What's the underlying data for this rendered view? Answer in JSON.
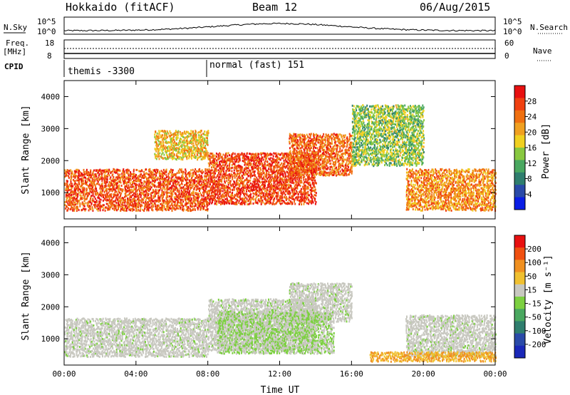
{
  "header": {
    "station": "Hokkaido (fitACF)",
    "beam": "Beam 12",
    "date": "06/Aug/2015"
  },
  "meta_panel": {
    "nsky_label": "N.Sky",
    "nsky_ticks": [
      "10^5",
      "10^0"
    ],
    "nsearch_label": "N.Search",
    "nsearch_ticks": [
      "10^5",
      "10^0"
    ],
    "freq_label": "Freq.",
    "freq_unit": "[MHz]",
    "freq_ticks": [
      "18",
      "8"
    ],
    "nave_label": "Nave",
    "nave_ticks": [
      "60",
      "0"
    ],
    "cpid_label": "CPID",
    "cpid_segments": [
      {
        "name": "themis",
        "value": "-3300",
        "start_hour": 0.0,
        "end_hour": 8.0
      },
      {
        "name": "normal (fast)",
        "value": "151",
        "start_hour": 8.0,
        "end_hour": 24.0
      }
    ]
  },
  "chart_data": [
    {
      "type": "heatmap",
      "name": "power-panel",
      "ylabel": "Slant Range [km]",
      "xlabel": "",
      "xlim": [
        0,
        24
      ],
      "ylim": [
        180,
        4500
      ],
      "yticks": [
        1000,
        2000,
        3000,
        4000
      ],
      "xticks": [
        0,
        4,
        8,
        12,
        16,
        20,
        24
      ],
      "colorbar": {
        "label": "Power [dB]",
        "min": 0,
        "max": 32,
        "ticks": [
          "28",
          "24",
          "20",
          "16",
          "12",
          "8",
          "4"
        ],
        "colors": [
          "#0a1ee6",
          "#2a4aa8",
          "#2f7e6e",
          "#4aa860",
          "#88c840",
          "#f0d020",
          "#f0a020",
          "#f07010",
          "#f04010",
          "#e81010"
        ]
      },
      "echo_regions": [
        {
          "t0": 0.0,
          "t1": 8.0,
          "r0": 400,
          "r1": 1700,
          "intensity": 0.85,
          "color_class": "power-strong"
        },
        {
          "t0": 8.0,
          "t1": 14.0,
          "r0": 600,
          "r1": 2200,
          "intensity": 0.9,
          "color_class": "power-strong"
        },
        {
          "t0": 12.5,
          "t1": 16.0,
          "r0": 1500,
          "r1": 2800,
          "intensity": 0.8,
          "color_class": "power-strong"
        },
        {
          "t0": 19.0,
          "t1": 24.0,
          "r0": 400,
          "r1": 1700,
          "intensity": 0.7,
          "color_class": "power-strong"
        },
        {
          "t0": 5.0,
          "t1": 8.0,
          "r0": 2000,
          "r1": 2900,
          "intensity": 0.55,
          "color_class": "power-medium"
        },
        {
          "t0": 16.0,
          "t1": 20.0,
          "r0": 1800,
          "r1": 3700,
          "intensity": 0.35,
          "color_class": "power-weak"
        }
      ]
    },
    {
      "type": "heatmap",
      "name": "velocity-panel",
      "ylabel": "Slant Range [km]",
      "xlabel": "Time UT",
      "xlim": [
        0,
        24
      ],
      "ylim": [
        180,
        4500
      ],
      "yticks": [
        1000,
        2000,
        3000,
        4000
      ],
      "xticks": [
        0,
        4,
        8,
        12,
        16,
        20,
        24
      ],
      "xtick_labels": [
        "00:00",
        "04:00",
        "08:00",
        "12:00",
        "16:00",
        "20:00",
        "00:00"
      ],
      "colorbar": {
        "label": "Velocity [m s⁻¹]",
        "min": -250,
        "max": 250,
        "ticks": [
          "200",
          "100",
          "50",
          "15",
          "-15",
          "-50",
          "-100",
          "-200"
        ],
        "colors": [
          "#1a28b8",
          "#2a4aa8",
          "#2f7e6e",
          "#4aa860",
          "#7cd040",
          "#c8c8c0",
          "#f0c030",
          "#f09020",
          "#f05010",
          "#e81010"
        ]
      },
      "echo_regions": [
        {
          "t0": 0.0,
          "t1": 8.0,
          "r0": 400,
          "r1": 1600,
          "color_class": "velocity-ground"
        },
        {
          "t0": 8.0,
          "t1": 14.0,
          "r0": 600,
          "r1": 2200,
          "color_class": "velocity-ground"
        },
        {
          "t0": 12.5,
          "t1": 16.0,
          "r0": 1500,
          "r1": 2700,
          "color_class": "velocity-ground"
        },
        {
          "t0": 19.0,
          "t1": 24.0,
          "r0": 400,
          "r1": 1700,
          "color_class": "velocity-ground"
        },
        {
          "t0": 17.0,
          "t1": 24.0,
          "r0": 250,
          "r1": 550,
          "color_class": "velocity-away"
        },
        {
          "t0": 8.5,
          "t1": 15.0,
          "r0": 500,
          "r1": 1800,
          "color_class": "velocity-toward"
        }
      ]
    }
  ]
}
